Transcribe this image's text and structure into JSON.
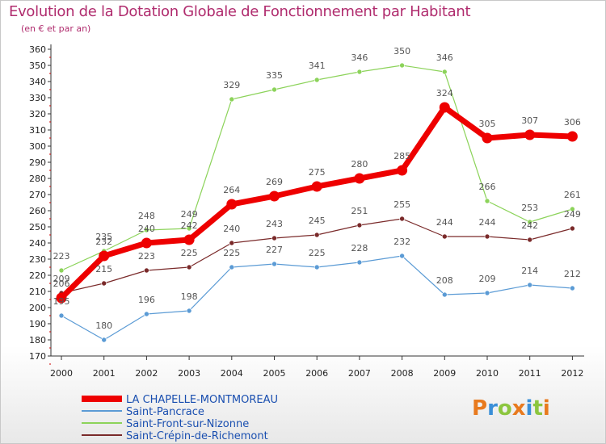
{
  "title": "Evolution de la Dotation Globale de Fonctionnement par Habitant",
  "subtitle": "(en € et par an)",
  "logo": {
    "text": "Proxiti",
    "colors": [
      "#e87a1e",
      "#3a8fd8",
      "#8cc63f",
      "#e87a1e",
      "#3a8fd8",
      "#8cc63f",
      "#e87a1e"
    ]
  },
  "chart_data": {
    "type": "line",
    "x": [
      "2000",
      "2001",
      "2002",
      "2003",
      "2004",
      "2005",
      "2006",
      "2007",
      "2008",
      "2009",
      "2010",
      "2011",
      "2012"
    ],
    "ylim": [
      170,
      360
    ],
    "yticks": [
      170,
      180,
      190,
      200,
      210,
      220,
      230,
      240,
      250,
      260,
      270,
      280,
      290,
      300,
      310,
      320,
      330,
      340,
      350,
      360
    ],
    "grid": false,
    "legend_position": "bottom-left",
    "series": [
      {
        "name": "LA CHAPELLE-MONTMOREAU",
        "color": "#ee0000",
        "values": [
          206,
          232,
          240,
          242,
          264,
          269,
          275,
          280,
          285,
          324,
          305,
          307,
          306
        ],
        "labels": [
          "206",
          "232",
          "240",
          "242",
          "264",
          "269",
          "275",
          "280",
          "285",
          "324",
          "305",
          "307",
          "306"
        ]
      },
      {
        "name": "Saint-Pancrace",
        "color": "#5b9bd5",
        "values": [
          195,
          180,
          196,
          198,
          225,
          227,
          225,
          228,
          232,
          208,
          209,
          214,
          212
        ],
        "labels": [
          "195",
          "180",
          "196",
          "198",
          "225",
          "227",
          "225",
          "228",
          "232",
          "208",
          "209",
          "214",
          "212"
        ]
      },
      {
        "name": "Saint-Front-sur-Nizonne",
        "color": "#8cd35a",
        "values": [
          223,
          235,
          248,
          249,
          329,
          335,
          341,
          346,
          350,
          346,
          266,
          253,
          261
        ],
        "labels": [
          "223",
          "235",
          "248",
          "249",
          "329",
          "335",
          "341",
          "346",
          "350",
          "346",
          "266",
          "253",
          "261"
        ]
      },
      {
        "name": "Saint-Crépin-de-Richemont",
        "color": "#7a2a2a",
        "values": [
          209,
          215,
          223,
          225,
          240,
          243,
          245,
          251,
          255,
          244,
          244,
          242,
          249
        ],
        "labels": [
          "209",
          "215",
          "223",
          "225",
          "240",
          "243",
          "245",
          "251",
          "255",
          "244",
          "244",
          "242",
          "249"
        ]
      }
    ]
  }
}
